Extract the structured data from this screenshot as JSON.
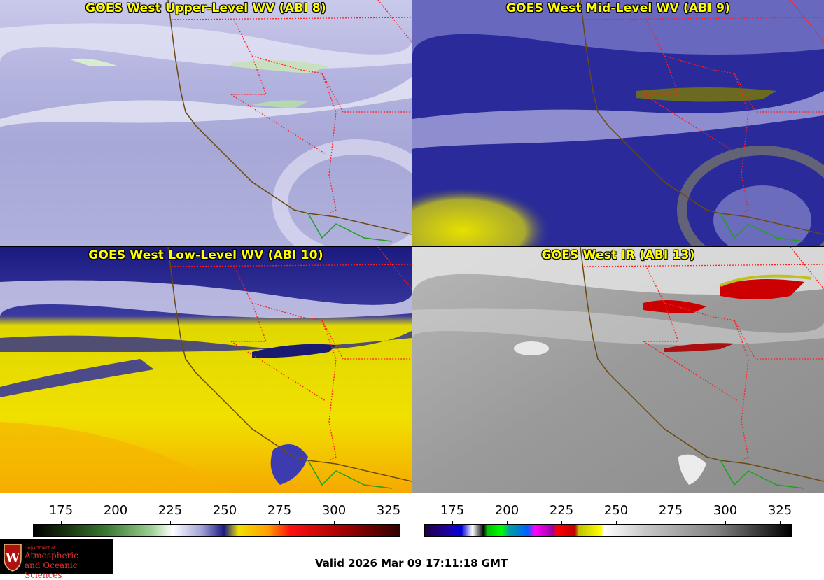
{
  "panels": [
    {
      "title": "GOES West Upper-Level WV (ABI 8)"
    },
    {
      "title": "GOES West Mid-Level WV (ABI 9)"
    },
    {
      "title": "GOES West Low-Level WV (ABI 10)"
    },
    {
      "title": "GOES West IR (ABI 13)"
    }
  ],
  "scales": {
    "wv": {
      "ticks": [
        "175",
        "200",
        "225",
        "250",
        "275",
        "300",
        "325"
      ]
    },
    "ir": {
      "ticks": [
        "175",
        "200",
        "225",
        "250",
        "275",
        "300",
        "325"
      ]
    }
  },
  "logo": {
    "dept": "Department of",
    "line1": "Atmospheric",
    "line2": "and Oceanic Sciences"
  },
  "valid": "Valid 2026 Mar 09 17:11:18 GMT",
  "colors": {
    "title": "#ffff00",
    "state_border": "#ff2020",
    "coast": "#6b4a10",
    "logo_bg": "#000000",
    "logo_text": "#e03030"
  }
}
